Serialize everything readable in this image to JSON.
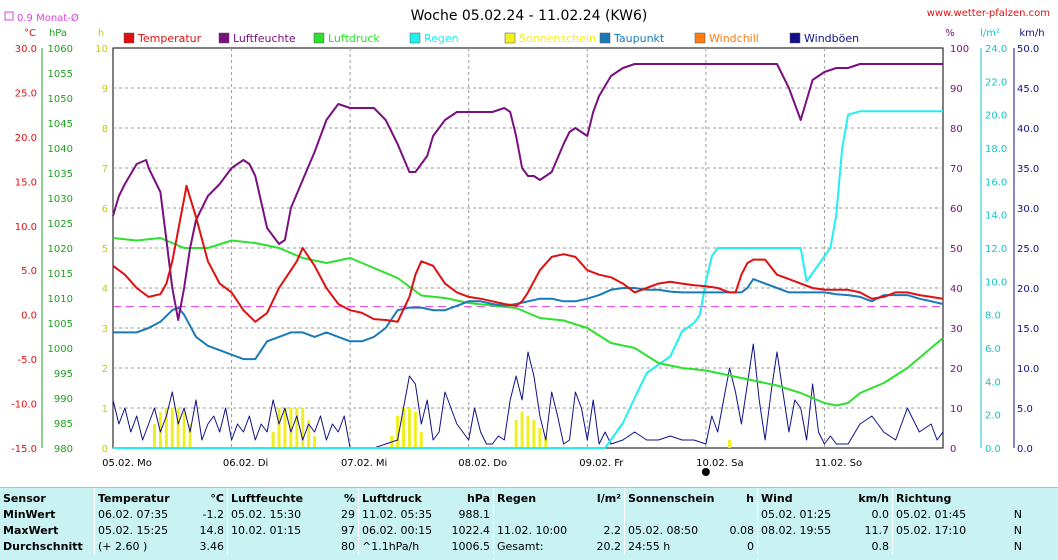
{
  "title": "Woche 05.02.24 - 11.02.24 (KW6)",
  "website": "www.wetter-pfalzen.com",
  "avg_label": "0.9 Monat-Ø",
  "colors": {
    "temperature": "#e01010",
    "humidity": "#7a1080",
    "pressure": "#2ee02e",
    "rain": "#20f0f0",
    "sunshine": "#f0f020",
    "dewpoint": "#1a7ab8",
    "windchill": "#ff7a10",
    "gust": "#10108a",
    "avg": "#e040e0"
  },
  "chart_data": {
    "type": "line",
    "title": "Woche 05.02.24 - 11.02.24 (KW6)",
    "x_unit": "days",
    "x_ticks": [
      "05.02. Mo",
      "06.02. Di",
      "07.02. Mi",
      "08.02. Do",
      "09.02. Fr",
      "10.02. Sa",
      "11.02. So"
    ],
    "xlim": [
      0,
      7
    ],
    "grid": true,
    "legend_position": "top",
    "axes": {
      "temperature": {
        "unit": "°C",
        "min": -15,
        "max": 30,
        "ticks": [
          "30.0",
          "25.0",
          "20.0",
          "15.0",
          "10.0",
          "5.0",
          "0.0",
          "-5.0",
          "-10.0",
          "-15.0"
        ]
      },
      "pressure": {
        "unit": "hPa",
        "min": 980,
        "max": 1060,
        "ticks": [
          "1060",
          "1055",
          "1050",
          "1045",
          "1040",
          "1035",
          "1030",
          "1025",
          "1020",
          "1015",
          "1010",
          "1005",
          "1000",
          "995",
          "990",
          "985",
          "980"
        ]
      },
      "sunshine": {
        "unit": "h",
        "min": 0,
        "max": 10,
        "ticks": [
          "10",
          "9",
          "8",
          "7",
          "6",
          "5",
          "4",
          "3",
          "2",
          "1",
          "0"
        ]
      },
      "humidity": {
        "unit": "%",
        "min": 0,
        "max": 100,
        "ticks": [
          "100",
          "90",
          "80",
          "70",
          "60",
          "50",
          "40",
          "30",
          "20",
          "10",
          "0"
        ]
      },
      "rain": {
        "unit": "l/m²",
        "min": 0,
        "max": 24,
        "ticks": [
          "24.0",
          "22.0",
          "20.0",
          "18.0",
          "16.0",
          "14.0",
          "12.0",
          "10.0",
          "8.0",
          "6.0",
          "4.0",
          "2.0",
          "0.0"
        ]
      },
      "wind": {
        "unit": "km/h",
        "min": 0,
        "max": 50,
        "ticks": [
          "50.0",
          "45.0",
          "40.0",
          "35.0",
          "30.0",
          "25.0",
          "20.0",
          "15.0",
          "10.0",
          "5.0",
          "0.0"
        ]
      }
    },
    "monthly_avg_temperature": 0.9,
    "series": [
      {
        "name": "Temperatur",
        "axis": "temperature",
        "x": [
          0,
          0.1,
          0.2,
          0.3,
          0.4,
          0.45,
          0.5,
          0.55,
          0.6,
          0.62,
          0.7,
          0.8,
          0.9,
          1.0,
          1.1,
          1.2,
          1.3,
          1.4,
          1.5,
          1.55,
          1.6,
          1.7,
          1.8,
          1.9,
          2.0,
          2.1,
          2.2,
          2.3,
          2.4,
          2.5,
          2.55,
          2.6,
          2.7,
          2.8,
          2.9,
          3.0,
          3.1,
          3.2,
          3.3,
          3.4,
          3.45,
          3.5,
          3.6,
          3.7,
          3.8,
          3.9,
          4.0,
          4.1,
          4.2,
          4.3,
          4.4,
          4.5,
          4.6,
          4.7,
          4.8,
          4.9,
          5.0,
          5.1,
          5.2,
          5.25,
          5.3,
          5.35,
          5.4,
          5.5,
          5.6,
          5.7,
          5.8,
          5.9,
          6.0,
          6.1,
          6.2,
          6.3,
          6.4,
          6.5,
          6.6,
          6.7,
          6.8,
          6.9,
          7.0
        ],
        "y": [
          5.5,
          4.5,
          3.0,
          2.0,
          2.3,
          3.5,
          6.0,
          9.5,
          13.0,
          14.5,
          11.0,
          6.0,
          3.5,
          2.5,
          0.5,
          -0.8,
          0.2,
          3.0,
          5.0,
          6.0,
          7.5,
          5.5,
          3.0,
          1.2,
          0.5,
          0.2,
          -0.5,
          -0.6,
          -0.8,
          2.0,
          4.5,
          6.0,
          5.5,
          3.5,
          2.5,
          2.0,
          1.8,
          1.5,
          1.2,
          1.0,
          1.5,
          2.5,
          5.0,
          6.5,
          6.8,
          6.5,
          5.0,
          4.5,
          4.2,
          3.5,
          2.5,
          3.0,
          3.5,
          3.7,
          3.5,
          3.3,
          3.2,
          3.0,
          2.5,
          2.5,
          4.5,
          5.8,
          6.2,
          6.2,
          4.5,
          4.0,
          3.5,
          3.0,
          2.8,
          2.8,
          2.8,
          2.5,
          1.8,
          2.0,
          2.5,
          2.5,
          2.2,
          2.0,
          1.8
        ]
      },
      {
        "name": "Luftfeuchte",
        "axis": "humidity",
        "x": [
          0,
          0.05,
          0.1,
          0.2,
          0.28,
          0.3,
          0.4,
          0.45,
          0.5,
          0.55,
          0.6,
          0.65,
          0.7,
          0.8,
          0.9,
          1.0,
          1.1,
          1.15,
          1.2,
          1.3,
          1.4,
          1.45,
          1.5,
          1.6,
          1.7,
          1.8,
          1.9,
          2.0,
          2.1,
          2.2,
          2.3,
          2.4,
          2.5,
          2.55,
          2.6,
          2.65,
          2.7,
          2.8,
          2.9,
          3.0,
          3.1,
          3.2,
          3.3,
          3.35,
          3.4,
          3.45,
          3.5,
          3.55,
          3.6,
          3.7,
          3.8,
          3.85,
          3.9,
          4.0,
          4.05,
          4.1,
          4.2,
          4.3,
          4.4,
          4.5,
          4.6,
          4.7,
          4.8,
          4.9,
          5.0,
          5.1,
          5.2,
          5.3,
          5.35,
          5.4,
          5.5,
          5.6,
          5.7,
          5.8,
          5.9,
          6.0,
          6.1,
          6.2,
          6.3,
          6.4,
          6.5,
          6.6,
          6.7,
          6.8,
          6.9,
          7.0
        ],
        "y": [
          58,
          63,
          66,
          71,
          72,
          70,
          64,
          52,
          40,
          32,
          40,
          50,
          57,
          63,
          66,
          70,
          72,
          71,
          68,
          55,
          51,
          52,
          60,
          67,
          74,
          82,
          86,
          85,
          85,
          85,
          82,
          76,
          69,
          69,
          71,
          73,
          78,
          82,
          84,
          84,
          84,
          84,
          85,
          84,
          78,
          70,
          68,
          68,
          67,
          69,
          76,
          79,
          80,
          78,
          84,
          88,
          93,
          95,
          96,
          96,
          96,
          96,
          96,
          96,
          96,
          96,
          96,
          96,
          96,
          96,
          96,
          96,
          90,
          82,
          92,
          94,
          95,
          95,
          96,
          96,
          96,
          96,
          96,
          96,
          96,
          96
        ]
      },
      {
        "name": "Luftdruck",
        "axis": "pressure",
        "x": [
          0,
          0.2,
          0.4,
          0.5,
          0.6,
          0.8,
          1.0,
          1.2,
          1.4,
          1.6,
          1.8,
          2.0,
          2.2,
          2.4,
          2.6,
          2.8,
          3.0,
          3.2,
          3.4,
          3.6,
          3.8,
          4.0,
          4.2,
          4.4,
          4.6,
          4.8,
          5.0,
          5.2,
          5.4,
          5.6,
          5.8,
          6.0,
          6.1,
          6.2,
          6.3,
          6.5,
          6.7,
          6.9,
          7.0
        ],
        "y": [
          1022.0,
          1021.5,
          1022.0,
          1021.0,
          1020.0,
          1020.0,
          1021.5,
          1021.0,
          1020.0,
          1018.0,
          1017.0,
          1018.0,
          1016.0,
          1014.0,
          1010.5,
          1010.0,
          1009.0,
          1008.5,
          1008.0,
          1006.0,
          1005.5,
          1004.0,
          1001.0,
          1000.0,
          997.0,
          996.0,
          995.5,
          994.5,
          993.5,
          992.5,
          991.0,
          989.0,
          988.5,
          989.0,
          991.0,
          993.0,
          996.0,
          1000.0,
          1002.0
        ]
      },
      {
        "name": "Regen",
        "axis": "rain",
        "x": [
          0,
          4.15,
          4.3,
          4.4,
          4.5,
          4.6,
          4.7,
          4.8,
          4.9,
          4.95,
          5.0,
          5.05,
          5.1,
          5.5,
          5.8,
          5.85,
          5.9,
          5.95,
          6.0,
          6.05,
          6.1,
          6.15,
          6.2,
          6.3,
          6.4,
          6.5,
          7.0
        ],
        "y": [
          0,
          0,
          1.5,
          3.0,
          4.5,
          5.0,
          5.5,
          7.0,
          7.5,
          8.0,
          10.0,
          11.5,
          12.0,
          12.0,
          12.0,
          10.0,
          10.5,
          11.0,
          11.5,
          12.0,
          14.0,
          18.0,
          20.0,
          20.2,
          20.2,
          20.2,
          20.2
        ]
      },
      {
        "name": "Taupunkt",
        "axis": "temperature",
        "x": [
          0,
          0.2,
          0.3,
          0.4,
          0.5,
          0.55,
          0.6,
          0.7,
          0.8,
          0.9,
          1.0,
          1.1,
          1.2,
          1.3,
          1.4,
          1.5,
          1.6,
          1.7,
          1.8,
          1.9,
          2.0,
          2.1,
          2.2,
          2.3,
          2.4,
          2.5,
          2.6,
          2.7,
          2.8,
          2.9,
          3.0,
          3.1,
          3.2,
          3.3,
          3.4,
          3.5,
          3.6,
          3.7,
          3.8,
          3.9,
          4.0,
          4.1,
          4.2,
          4.3,
          4.4,
          4.5,
          4.6,
          4.7,
          4.8,
          4.9,
          5.0,
          5.1,
          5.2,
          5.3,
          5.35,
          5.4,
          5.5,
          5.6,
          5.7,
          5.8,
          5.9,
          6.0,
          6.1,
          6.2,
          6.3,
          6.4,
          6.5,
          6.6,
          6.7,
          6.8,
          6.9,
          7.0
        ],
        "y": [
          -2.0,
          -2.0,
          -1.5,
          -0.8,
          0.5,
          0.8,
          0.0,
          -2.5,
          -3.5,
          -4.0,
          -4.5,
          -5.0,
          -5.0,
          -3.0,
          -2.5,
          -2.0,
          -2.0,
          -2.5,
          -2.0,
          -2.5,
          -3.0,
          -3.0,
          -2.5,
          -1.5,
          0.5,
          0.8,
          0.8,
          0.5,
          0.5,
          1.0,
          1.5,
          1.5,
          1.2,
          1.0,
          1.2,
          1.5,
          1.8,
          1.8,
          1.5,
          1.5,
          1.8,
          2.2,
          2.8,
          3.0,
          3.0,
          2.8,
          2.8,
          2.6,
          2.5,
          2.5,
          2.5,
          2.5,
          2.5,
          2.5,
          3.0,
          4.0,
          3.5,
          3.0,
          2.5,
          2.5,
          2.5,
          2.5,
          2.3,
          2.2,
          2.0,
          1.5,
          2.2,
          2.2,
          2.2,
          1.8,
          1.5,
          1.2
        ]
      },
      {
        "name": "Windböen",
        "axis": "wind",
        "x": [
          0,
          0.05,
          0.1,
          0.15,
          0.2,
          0.25,
          0.3,
          0.35,
          0.4,
          0.45,
          0.5,
          0.55,
          0.6,
          0.65,
          0.7,
          0.75,
          0.8,
          0.85,
          0.9,
          0.95,
          1.0,
          1.05,
          1.1,
          1.15,
          1.2,
          1.25,
          1.3,
          1.35,
          1.4,
          1.45,
          1.5,
          1.55,
          1.6,
          1.65,
          1.7,
          1.75,
          1.8,
          1.85,
          1.9,
          1.95,
          2.0,
          2.1,
          2.2,
          2.3,
          2.4,
          2.45,
          2.5,
          2.55,
          2.6,
          2.65,
          2.7,
          2.75,
          2.8,
          2.9,
          3.0,
          3.05,
          3.1,
          3.15,
          3.2,
          3.25,
          3.3,
          3.35,
          3.4,
          3.45,
          3.5,
          3.55,
          3.6,
          3.65,
          3.7,
          3.75,
          3.8,
          3.85,
          3.9,
          3.95,
          4.0,
          4.05,
          4.1,
          4.15,
          4.2,
          4.3,
          4.4,
          4.5,
          4.6,
          4.7,
          4.8,
          4.9,
          5.0,
          5.05,
          5.1,
          5.15,
          5.2,
          5.25,
          5.3,
          5.35,
          5.4,
          5.45,
          5.5,
          5.55,
          5.6,
          5.65,
          5.7,
          5.75,
          5.8,
          5.85,
          5.9,
          5.95,
          6.0,
          6.05,
          6.1,
          6.2,
          6.3,
          6.4,
          6.5,
          6.6,
          6.7,
          6.8,
          6.9,
          6.95,
          7.0
        ],
        "y": [
          6,
          3,
          5,
          2,
          4,
          1,
          3,
          5,
          2,
          4,
          7,
          3,
          5,
          2,
          6,
          1,
          3,
          4,
          2,
          5,
          1,
          3,
          2,
          4,
          1,
          3,
          2,
          6,
          3,
          5,
          2,
          4,
          1,
          3,
          2,
          4,
          1,
          3,
          2,
          4,
          0,
          0,
          0,
          0.5,
          1,
          5,
          9,
          8,
          3,
          6,
          1,
          2,
          7,
          3,
          1,
          5,
          2,
          0.5,
          0.5,
          1.5,
          1,
          6,
          9,
          6,
          12,
          9,
          4,
          1,
          7,
          4,
          0.5,
          1,
          7,
          5,
          1,
          6,
          0.5,
          2,
          0.5,
          1,
          2,
          1,
          1,
          1.5,
          1,
          1,
          0.5,
          4,
          2,
          6,
          10,
          7,
          3,
          8,
          13,
          6,
          1,
          7,
          12,
          7,
          2,
          6,
          5,
          1,
          8,
          2,
          0.5,
          1.5,
          0.5,
          0.5,
          3,
          4,
          2,
          1,
          5,
          2,
          3,
          1,
          2
        ]
      },
      {
        "name": "Sonnenschein",
        "axis": "sunshine",
        "type": "bar",
        "x": [
          0.35,
          0.4,
          0.45,
          0.5,
          0.55,
          0.6,
          0.65,
          1.35,
          1.4,
          1.45,
          1.5,
          1.55,
          1.6,
          1.65,
          1.7,
          2.35,
          2.4,
          2.45,
          2.5,
          2.55,
          2.6,
          3.4,
          3.45,
          3.5,
          3.55,
          3.6,
          3.65,
          5.2
        ],
        "y": [
          0.6,
          0.9,
          1.0,
          1.0,
          1.0,
          0.9,
          0.6,
          0.4,
          1.0,
          1.0,
          1.0,
          1.0,
          1.0,
          0.7,
          0.3,
          0.3,
          0.8,
          1.0,
          1.0,
          0.9,
          0.4,
          0.7,
          0.9,
          0.8,
          0.7,
          0.5,
          0.3,
          0.2
        ]
      }
    ],
    "legend": [
      "Temperatur",
      "Luftfeuchte",
      "Luftdruck",
      "Regen",
      "Sonnenschein",
      "Taupunkt",
      "Windchill",
      "Windböen"
    ]
  },
  "stats": {
    "headers": [
      {
        "name": "Sensor",
        "unit": ""
      },
      {
        "name": "Temperatur",
        "unit": "°C"
      },
      {
        "name": "Luftfeuchte",
        "unit": "%"
      },
      {
        "name": "Luftdruck",
        "unit": "hPa"
      },
      {
        "name": "Regen",
        "unit": "l/m²"
      },
      {
        "name": "Sonnenschein",
        "unit": "h"
      },
      {
        "name": "Wind",
        "unit": "km/h"
      },
      {
        "name": "Richtung",
        "unit": ""
      }
    ],
    "rows": [
      {
        "label": "MinWert",
        "cells": [
          [
            "06.02.  07:35",
            "-1.2"
          ],
          [
            "05.02.  15:30",
            "29"
          ],
          [
            "11.02.  05:35",
            "988.1"
          ],
          [
            "",
            ""
          ],
          [
            "",
            ""
          ],
          [
            "05.02.  01:25",
            "0.0"
          ],
          [
            "05.02.  01:45",
            "N"
          ]
        ]
      },
      {
        "label": "MaxWert",
        "cells": [
          [
            "05.02.  15:25",
            "14.8"
          ],
          [
            "10.02.  01:15",
            "97"
          ],
          [
            "06.02.  00:15",
            "1022.4"
          ],
          [
            "11.02.  10:00",
            "2.2"
          ],
          [
            "05.02.  08:50",
            "0.08"
          ],
          [
            "08.02.  19:55",
            "11.7"
          ],
          [
            "05.02.  17:10",
            "N"
          ]
        ]
      },
      {
        "label": "Durchschnitt",
        "cells": [
          [
            "(+ 2.60 )",
            "3.46"
          ],
          [
            "",
            "80"
          ],
          [
            "^1.1hPa/h",
            "1006.5"
          ],
          [
            "Gesamt:",
            "20.2"
          ],
          [
            "24:55 h",
            "0"
          ],
          [
            "",
            "0.8"
          ],
          [
            "",
            "N"
          ]
        ]
      }
    ]
  }
}
